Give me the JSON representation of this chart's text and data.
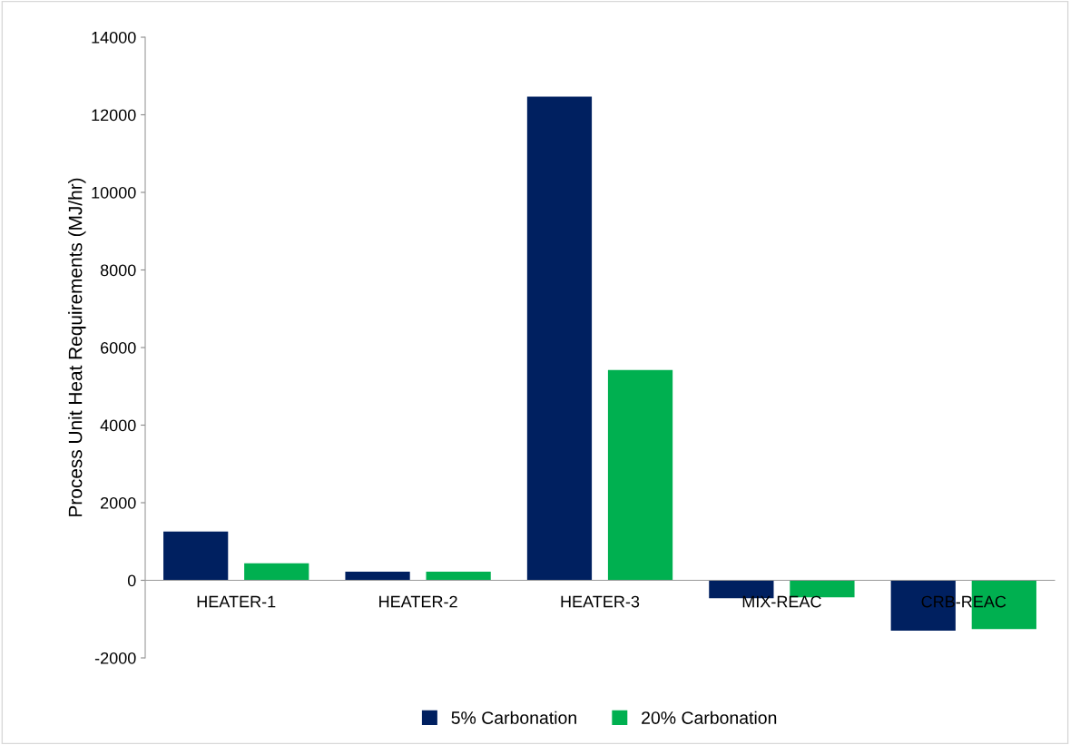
{
  "chart_data": {
    "type": "bar",
    "ylabel": "Process Unit Heat Requirements (MJ/hr)",
    "categories": [
      "HEATER-1",
      "HEATER-2",
      "HEATER-3",
      "MIX-REAC",
      "CRB-REAC"
    ],
    "series": [
      {
        "name": "5% Carbonation",
        "color": "#002060",
        "values": [
          1260,
          220,
          12470,
          -460,
          -1300
        ]
      },
      {
        "name": "20% Carbonation",
        "color": "#00b050",
        "values": [
          440,
          220,
          5420,
          -440,
          -1260
        ]
      }
    ],
    "ylim": [
      -2000,
      14000
    ],
    "yticks": [
      -2000,
      0,
      2000,
      4000,
      6000,
      8000,
      10000,
      12000,
      14000
    ],
    "grid": false,
    "legend": "bottom"
  }
}
